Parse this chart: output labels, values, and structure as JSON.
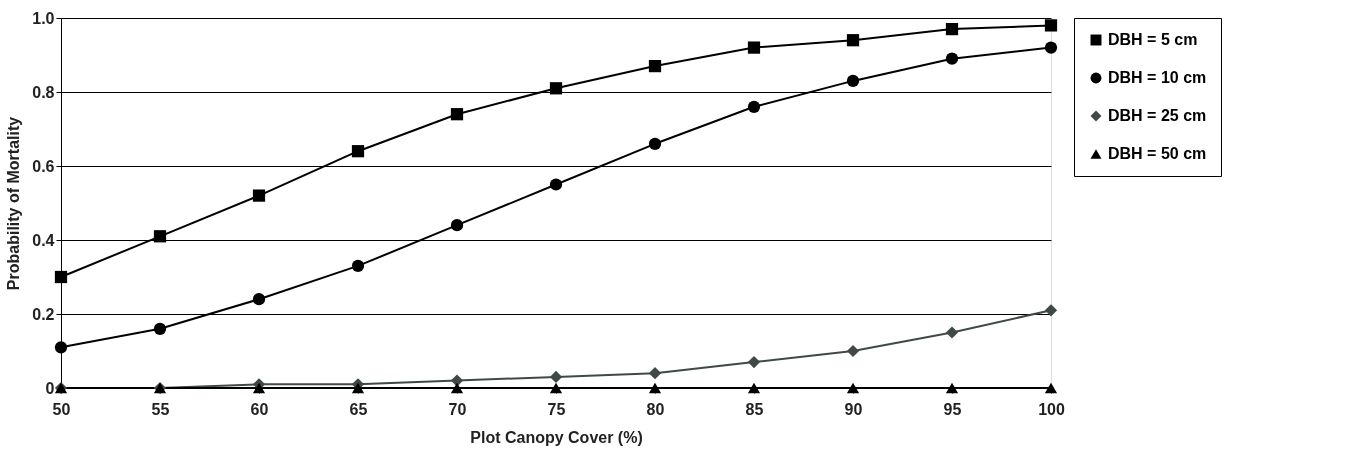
{
  "chart_data": {
    "type": "line",
    "xlabel": "Plot Canopy Cover (%)",
    "ylabel": "Probability of Mortality",
    "x": [
      50,
      55,
      60,
      65,
      70,
      75,
      80,
      85,
      90,
      95,
      100
    ],
    "series": [
      {
        "name": "DBH = 5 cm",
        "color": "#000000",
        "marker": "square",
        "values": [
          0.3,
          0.41,
          0.52,
          0.64,
          0.74,
          0.81,
          0.87,
          0.92,
          0.94,
          0.97,
          0.98
        ]
      },
      {
        "name": "DBH = 10 cm",
        "color": "#000000",
        "marker": "circle",
        "values": [
          0.11,
          0.16,
          0.24,
          0.33,
          0.44,
          0.55,
          0.66,
          0.76,
          0.83,
          0.89,
          0.92
        ]
      },
      {
        "name": "DBH = 25 cm",
        "color": "#404848",
        "marker": "diamond",
        "values": [
          0.0,
          0.0,
          0.01,
          0.01,
          0.02,
          0.03,
          0.04,
          0.07,
          0.1,
          0.15,
          0.21
        ]
      },
      {
        "name": "DBH = 50 cm",
        "color": "#000000",
        "marker": "triangle",
        "values": [
          0,
          0,
          0,
          0,
          0,
          0,
          0,
          0,
          0,
          0,
          0
        ]
      }
    ],
    "xlim": [
      50,
      100
    ],
    "xticks": [
      50,
      55,
      60,
      65,
      70,
      75,
      80,
      85,
      90,
      95,
      100
    ],
    "ylim": [
      0,
      1.0
    ],
    "yticks": [
      0,
      {
        "value": 0.2,
        "label": "0.2"
      },
      {
        "value": 0.4,
        "label": "0.4"
      },
      {
        "value": 0.6,
        "label": "0.6"
      },
      {
        "value": 0.8,
        "label": "0.8"
      },
      {
        "value": 1.0,
        "label": "1.0"
      }
    ],
    "grid": "y",
    "legend": "right",
    "line_style": "solid"
  }
}
